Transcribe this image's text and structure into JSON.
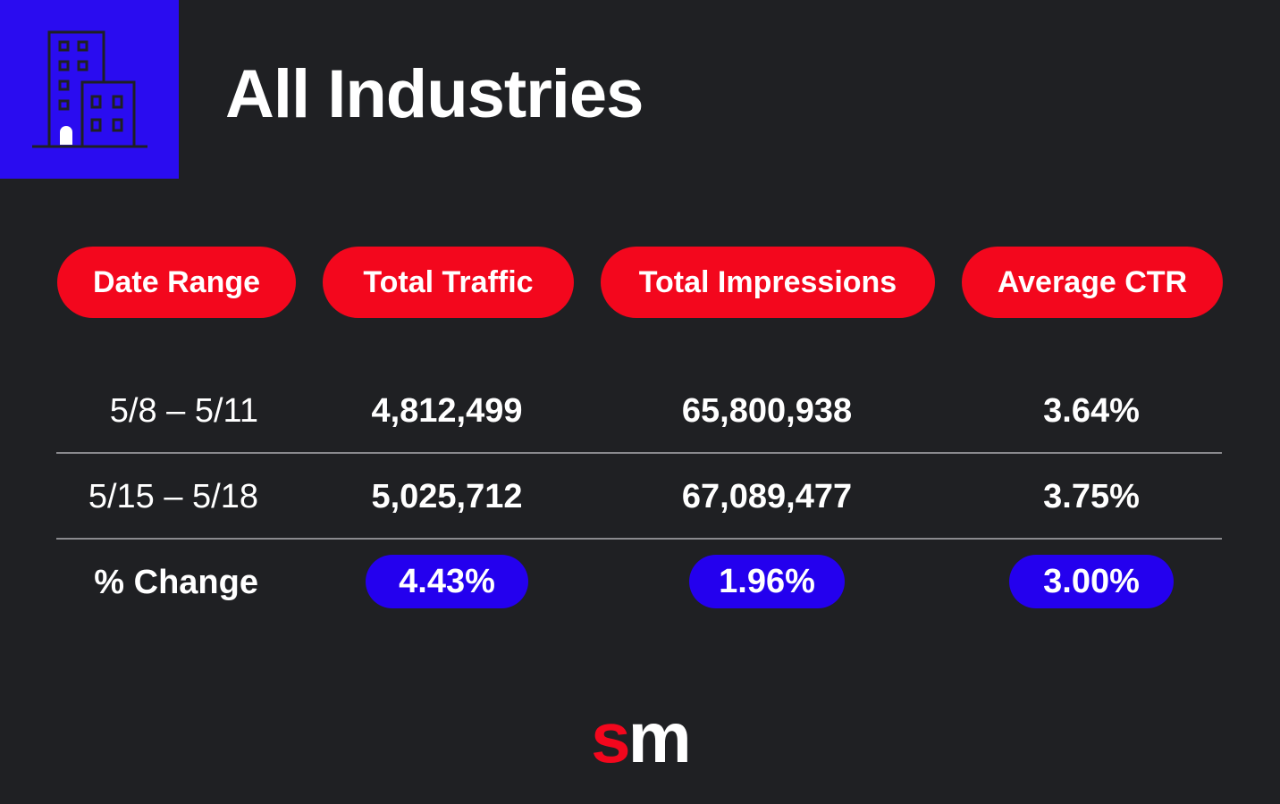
{
  "header": {
    "title": "All Industries"
  },
  "table": {
    "headers": [
      "Date Range",
      "Total Traffic",
      "Total Impressions",
      "Average CTR"
    ],
    "rows": [
      [
        "5/8 – 5/11",
        "4,812,499",
        "65,800,938",
        "3.64%"
      ],
      [
        "5/15 – 5/18",
        "5,025,712",
        "67,089,477",
        "3.75%"
      ]
    ],
    "change": {
      "label": "% Change",
      "values": [
        "4.43%",
        "1.96%",
        "3.00%"
      ]
    }
  },
  "logo": [
    "s",
    "m"
  ]
}
